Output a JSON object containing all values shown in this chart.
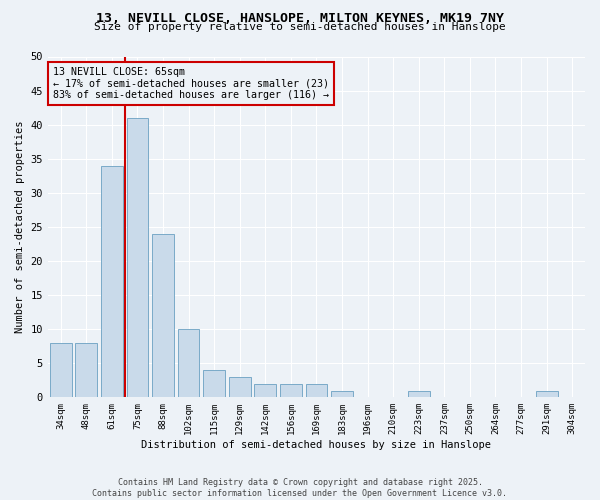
{
  "title_line1": "13, NEVILL CLOSE, HANSLOPE, MILTON KEYNES, MK19 7NY",
  "title_line2": "Size of property relative to semi-detached houses in Hanslope",
  "xlabel": "Distribution of semi-detached houses by size in Hanslope",
  "ylabel": "Number of semi-detached properties",
  "categories": [
    "34sqm",
    "48sqm",
    "61sqm",
    "75sqm",
    "88sqm",
    "102sqm",
    "115sqm",
    "129sqm",
    "142sqm",
    "156sqm",
    "169sqm",
    "183sqm",
    "196sqm",
    "210sqm",
    "223sqm",
    "237sqm",
    "250sqm",
    "264sqm",
    "277sqm",
    "291sqm",
    "304sqm"
  ],
  "values": [
    8,
    8,
    34,
    41,
    24,
    10,
    4,
    3,
    2,
    2,
    2,
    1,
    0,
    0,
    1,
    0,
    0,
    0,
    0,
    1,
    0
  ],
  "bar_color": "#c9daea",
  "bar_edge_color": "#7aaac8",
  "vline_index": 3,
  "vline_color": "#cc0000",
  "annotation_title": "13 NEVILL CLOSE: 65sqm",
  "annotation_line1": "← 17% of semi-detached houses are smaller (23)",
  "annotation_line2": "83% of semi-detached houses are larger (116) →",
  "annotation_box_color": "#cc0000",
  "ylim": [
    0,
    50
  ],
  "yticks": [
    0,
    5,
    10,
    15,
    20,
    25,
    30,
    35,
    40,
    45,
    50
  ],
  "footer_line1": "Contains HM Land Registry data © Crown copyright and database right 2025.",
  "footer_line2": "Contains public sector information licensed under the Open Government Licence v3.0.",
  "bg_color": "#edf2f7"
}
